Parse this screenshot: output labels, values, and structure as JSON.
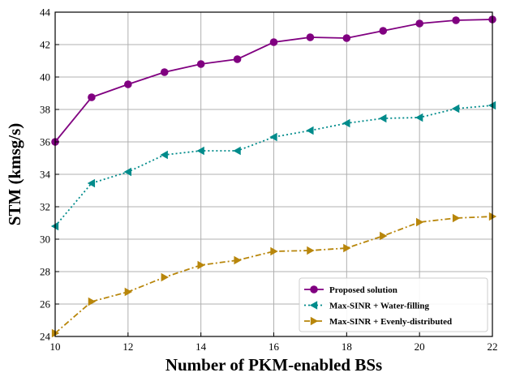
{
  "chart_data": {
    "type": "line",
    "xlabel": "Number of PKM-enabled BSs",
    "ylabel": "STM (kmsg/s)",
    "xlim": [
      10,
      22
    ],
    "ylim": [
      24,
      44
    ],
    "xticks": [
      10,
      12,
      14,
      16,
      18,
      20,
      22
    ],
    "yticks": [
      24,
      26,
      28,
      30,
      32,
      34,
      36,
      38,
      40,
      42,
      44
    ],
    "grid": true,
    "legend_position": "bottom-right",
    "x": [
      10,
      11,
      12,
      13,
      14,
      15,
      16,
      17,
      18,
      19,
      20,
      21,
      22
    ],
    "series": [
      {
        "name": "Proposed solution",
        "color": "#800080",
        "line_style": "solid",
        "marker": "circle",
        "values": [
          36.0,
          38.75,
          39.55,
          40.3,
          40.8,
          41.1,
          42.15,
          42.45,
          42.4,
          42.85,
          43.3,
          43.5,
          43.55
        ]
      },
      {
        "name": "Max-SINR + Water-filling",
        "color": "#008B8B",
        "line_style": "dotted",
        "marker": "triangle-left",
        "values": [
          30.8,
          33.45,
          34.15,
          35.2,
          35.45,
          35.45,
          36.3,
          36.7,
          37.15,
          37.45,
          37.5,
          38.05,
          38.25
        ]
      },
      {
        "name": "Max-SINR + Evenly-distributed",
        "color": "#B8860B",
        "line_style": "dashdot",
        "marker": "triangle-right",
        "values": [
          24.2,
          26.15,
          26.75,
          27.65,
          28.4,
          28.7,
          29.25,
          29.3,
          29.45,
          30.2,
          31.05,
          31.3,
          31.4
        ]
      }
    ]
  }
}
